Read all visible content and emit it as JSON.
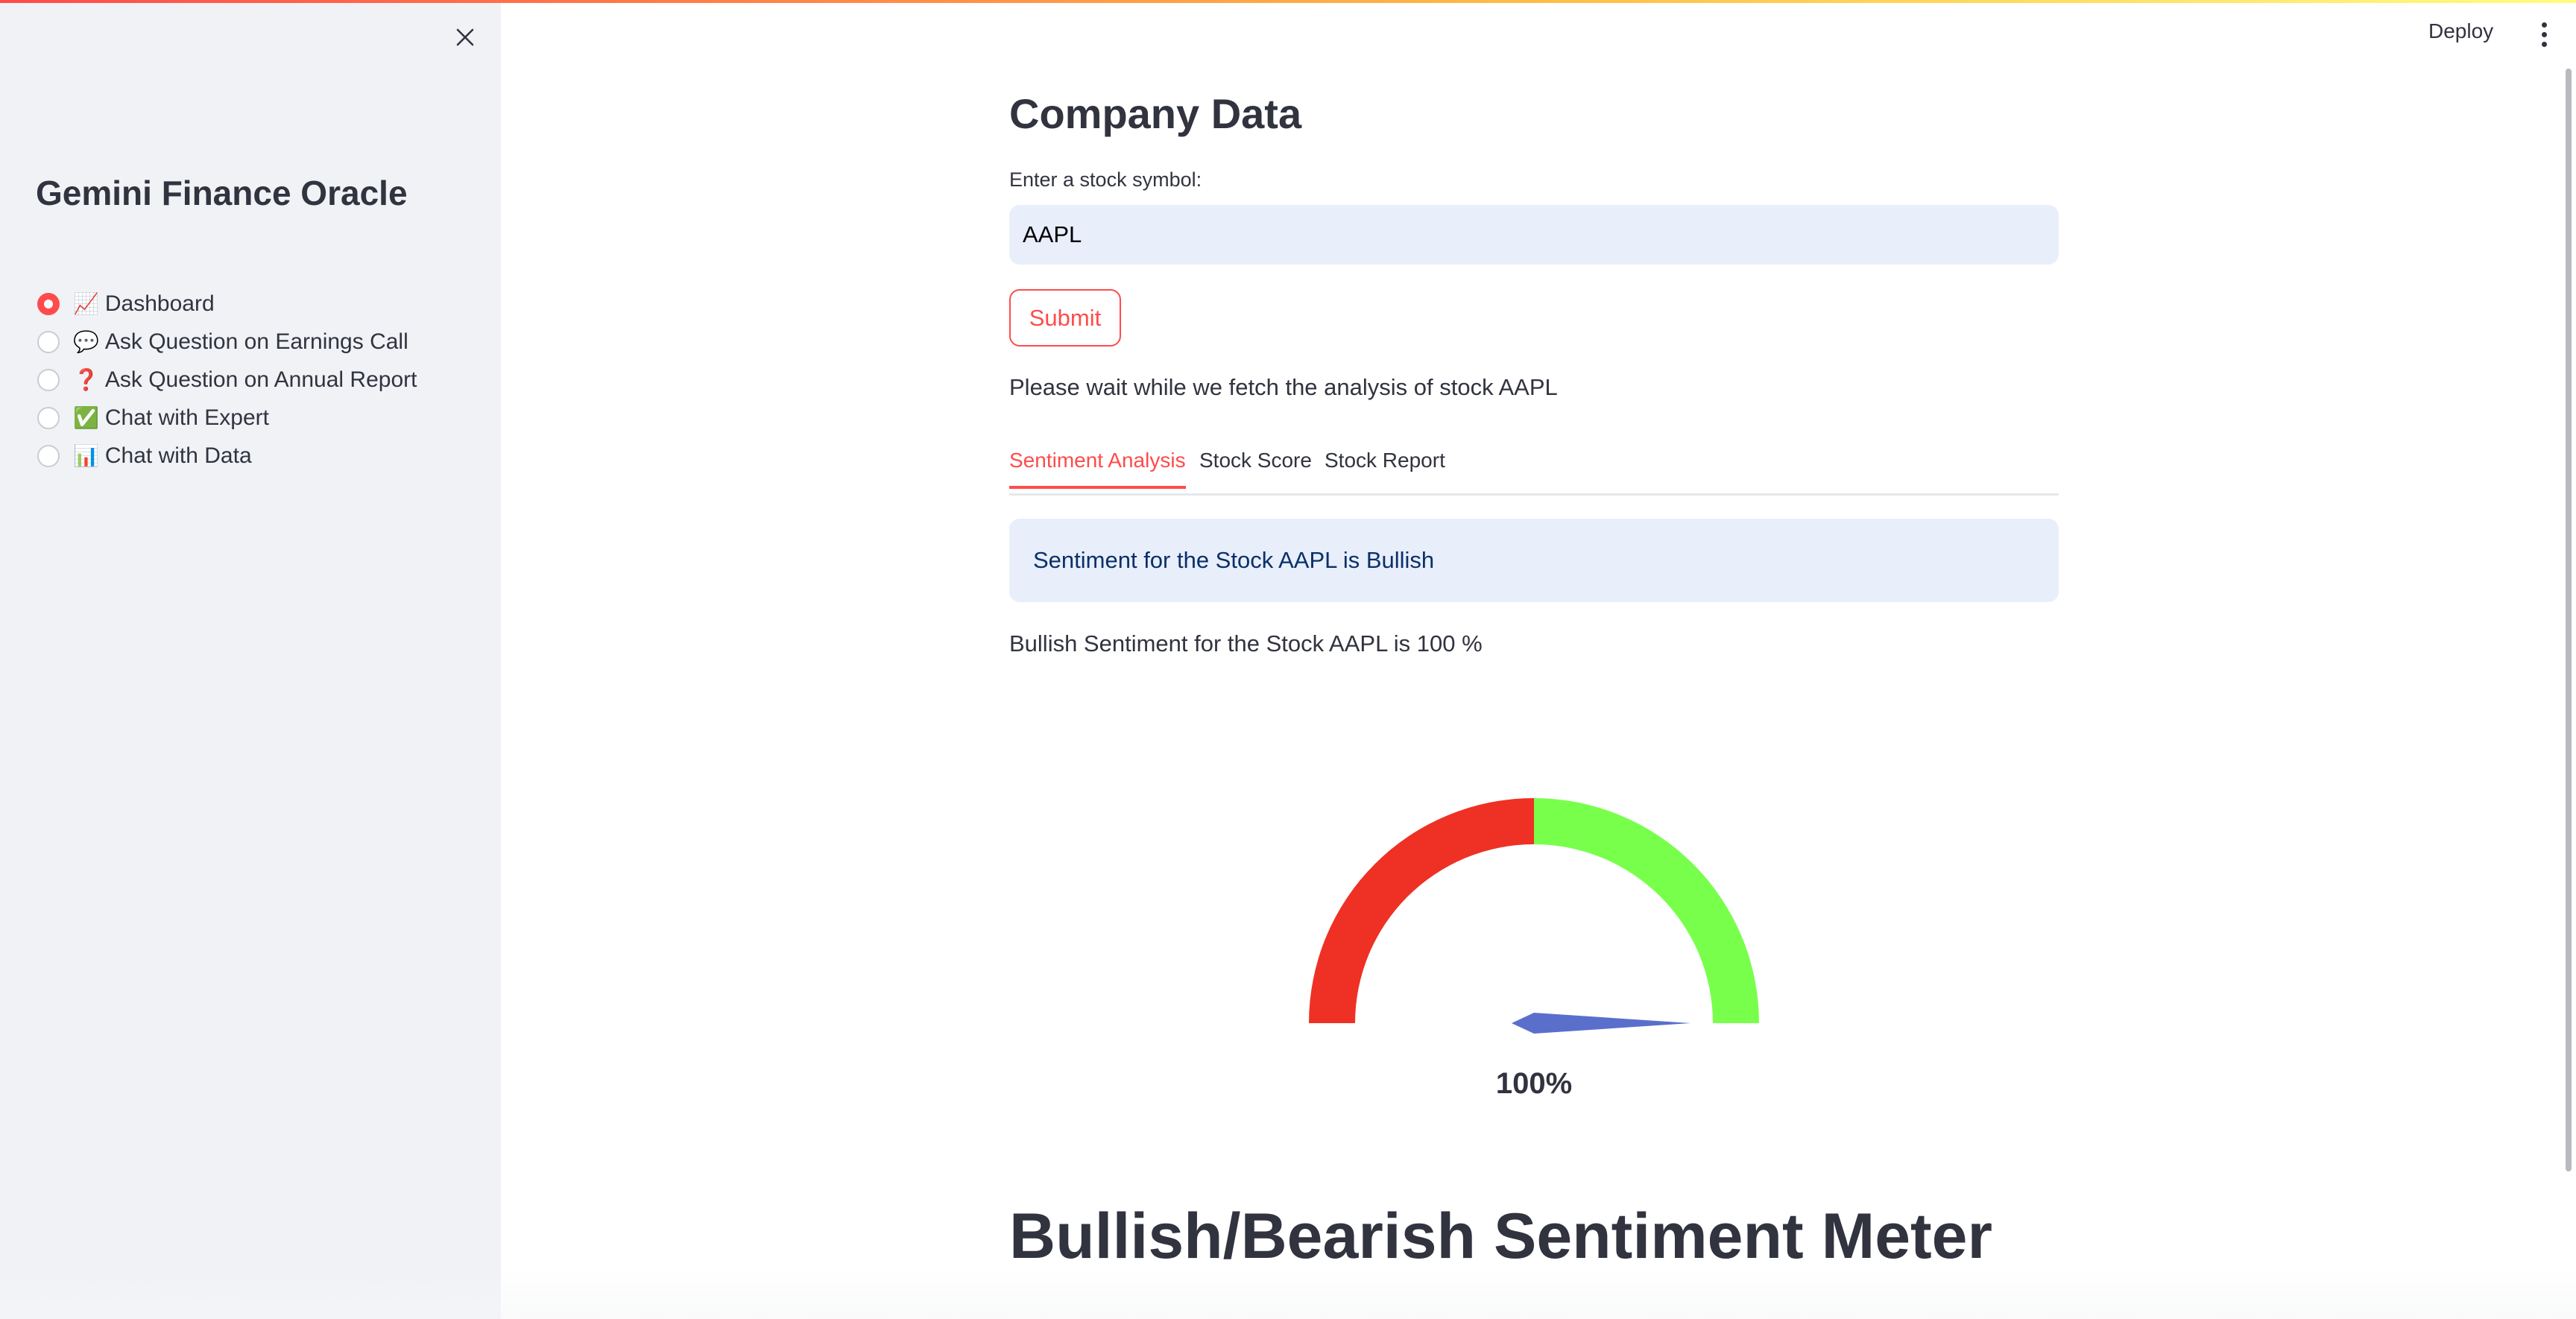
{
  "app": {
    "title": "Gemini Finance Oracle",
    "deploy_label": "Deploy"
  },
  "sidebar": {
    "items": [
      {
        "emoji": "📈",
        "label": "Dashboard",
        "selected": true
      },
      {
        "emoji": "💬",
        "label": "Ask Question on Earnings Call",
        "selected": false
      },
      {
        "emoji": "❓",
        "label": "Ask Question on Annual Report",
        "selected": false
      },
      {
        "emoji": "✅",
        "label": "Chat with Expert",
        "selected": false
      },
      {
        "emoji": "📊",
        "label": "Chat with Data",
        "selected": false
      }
    ]
  },
  "main": {
    "title": "Company Data",
    "input_label": "Enter a stock symbol:",
    "input_value": "AAPL",
    "submit_label": "Submit",
    "wait_text": "Please wait while we fetch the analysis of stock AAPL",
    "tabs": [
      {
        "label": "Sentiment Analysis",
        "active": true
      },
      {
        "label": "Stock Score",
        "active": false
      },
      {
        "label": "Stock Report",
        "active": false
      }
    ],
    "info_message": "Sentiment for the Stock AAPL is Bullish",
    "bullish_text": "Bullish Sentiment for the Stock AAPL is 100 %",
    "meter_title": "Bullish/Bearish Sentiment Meter"
  },
  "gauge": {
    "value": 100,
    "label": "100%",
    "bearish_color": "#ee3124",
    "bullish_color": "#78ff4b",
    "needle_color": "#5a6fcc"
  },
  "colors": {
    "accent": "#ff4b4b",
    "sidebar_bg": "#f0f2f6",
    "info_bg": "#e8eefa"
  }
}
